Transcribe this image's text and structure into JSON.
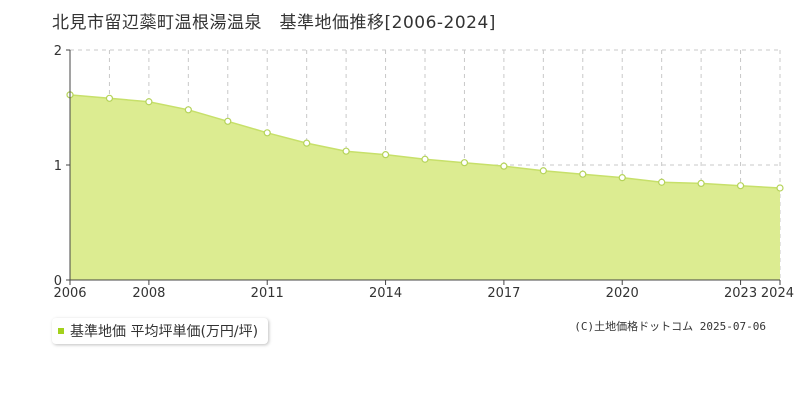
{
  "title": "北見市留辺蘂町温根湯温泉　基準地価推移[2006-2024]",
  "legend": {
    "label": "基準地価 平均坪単価(万円/坪)",
    "color": "#a3d11c"
  },
  "copyright": "(C)土地価格ドットコム 2025-07-06",
  "colors": {
    "area_fill": "#dcec91",
    "line": "#c7e06a",
    "marker_stroke": "#b5d35a",
    "grid": "#c8c8c8",
    "axis": "#444444"
  },
  "chart_data": {
    "type": "area",
    "title": "",
    "xlabel": "",
    "ylabel": "",
    "x": [
      2006,
      2007,
      2008,
      2009,
      2010,
      2011,
      2012,
      2013,
      2014,
      2015,
      2016,
      2017,
      2018,
      2019,
      2020,
      2021,
      2022,
      2023,
      2024
    ],
    "series": [
      {
        "name": "基準地価 平均坪単価(万円/坪)",
        "values": [
          1.61,
          1.58,
          1.55,
          1.48,
          1.38,
          1.28,
          1.19,
          1.12,
          1.09,
          1.05,
          1.02,
          0.99,
          0.95,
          0.92,
          0.89,
          0.85,
          0.84,
          0.82,
          0.8
        ]
      }
    ],
    "xlim": [
      2006,
      2024
    ],
    "ylim": [
      0,
      2
    ],
    "y_ticks": [
      "0",
      "1",
      "2"
    ],
    "x_tick_labels": [
      "2006",
      "2008",
      "2011",
      "2014",
      "2017",
      "2020",
      "2023",
      "2024"
    ],
    "x_tick_values": [
      2006,
      2008,
      2011,
      2014,
      2017,
      2020,
      2023,
      2024
    ],
    "grid": true,
    "legend_position": "bottom-left"
  }
}
